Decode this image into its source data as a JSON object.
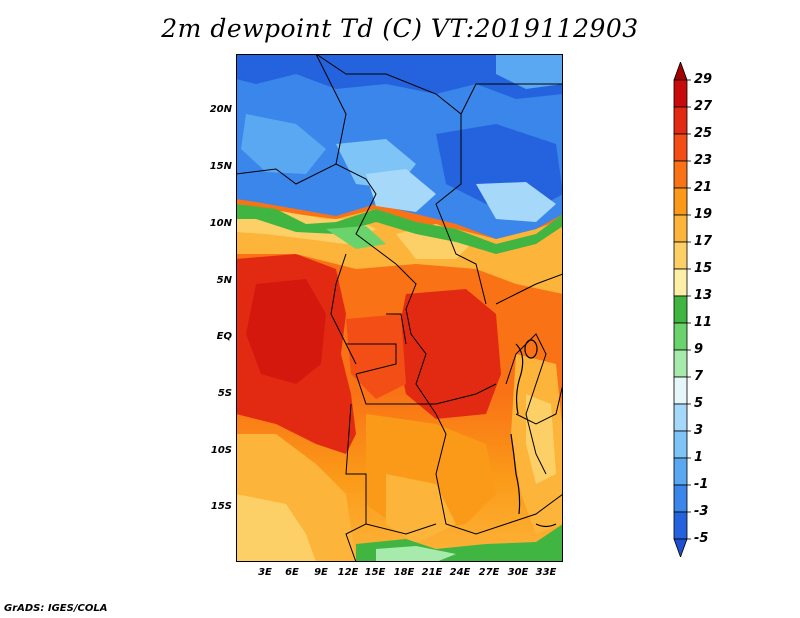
{
  "title": "2m dewpoint Td (C) VT:2019112903",
  "map": {
    "lat_labels": [
      "20N",
      "15N",
      "10N",
      "5N",
      "EQ",
      "5S",
      "10S",
      "15S"
    ],
    "lon_labels": [
      "3E",
      "6E",
      "9E",
      "12E",
      "15E",
      "18E",
      "21E",
      "24E",
      "27E",
      "30E",
      "33E"
    ]
  },
  "colorbar": {
    "labels": [
      "29",
      "27",
      "25",
      "23",
      "21",
      "19",
      "17",
      "15",
      "13",
      "11",
      "9",
      "7",
      "5",
      "3",
      "1",
      "-1",
      "-3",
      "-5"
    ],
    "colors": [
      "#a30000",
      "#c80a0a",
      "#e22a12",
      "#f24e16",
      "#f97316",
      "#fb9a18",
      "#fcb43a",
      "#fcd067",
      "#fdf0a6",
      "#41b541",
      "#6bd36b",
      "#a7ebac",
      "#e6f7fb",
      "#a6d9f9",
      "#7ec4f7",
      "#5aa7f2",
      "#3a86eb",
      "#2463dd",
      "#1e4fd0"
    ]
  },
  "footer": "GrADS: IGES/COLA"
}
